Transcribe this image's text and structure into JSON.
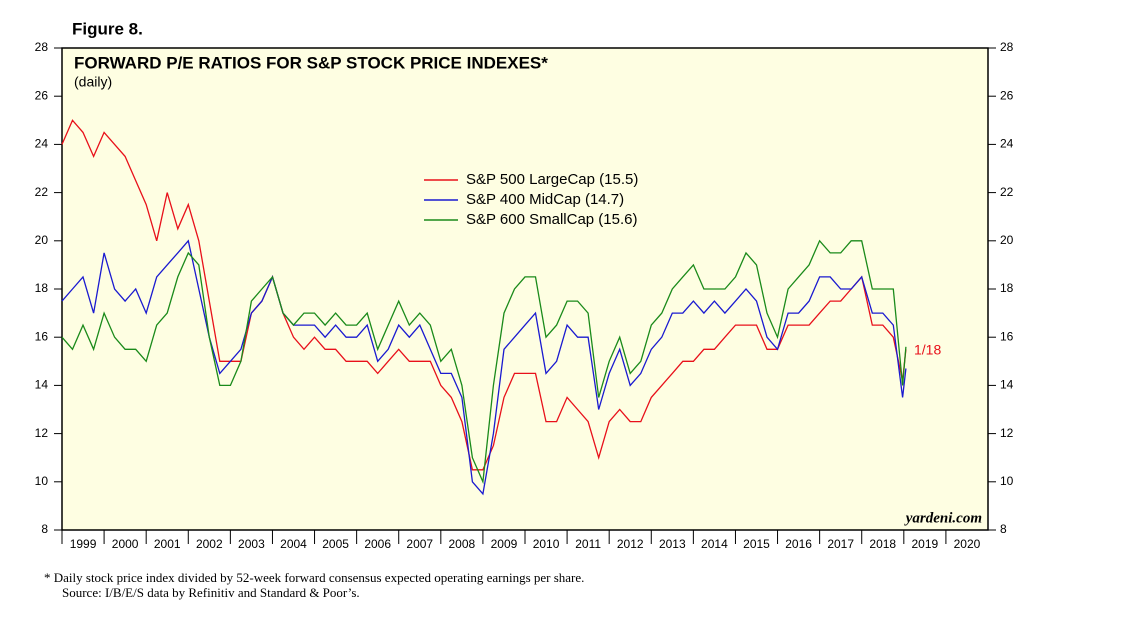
{
  "chart_data": {
    "type": "line",
    "figure_label": "Figure 8.",
    "title": "FORWARD P/E RATIOS FOR S&P STOCK PRICE INDEXES*",
    "subtitle": "(daily)",
    "annotation": "1/18",
    "watermark": "yardeni.com",
    "footnote": "*   Daily stock price index divided by 52-week forward consensus expected operating earnings per share.",
    "source": "Source: I/B/E/S data by Refinitiv and Standard & Poor’s.",
    "x": [
      1999,
      1999.25,
      1999.5,
      1999.75,
      2000,
      2000.25,
      2000.5,
      2000.75,
      2001,
      2001.25,
      2001.5,
      2001.75,
      2002,
      2002.25,
      2002.5,
      2002.75,
      2003,
      2003.25,
      2003.5,
      2003.75,
      2004,
      2004.25,
      2004.5,
      2004.75,
      2005,
      2005.25,
      2005.5,
      2005.75,
      2006,
      2006.25,
      2006.5,
      2006.75,
      2007,
      2007.25,
      2007.5,
      2007.75,
      2008,
      2008.25,
      2008.5,
      2008.75,
      2009,
      2009.25,
      2009.5,
      2009.75,
      2010,
      2010.25,
      2010.5,
      2010.75,
      2011,
      2011.25,
      2011.5,
      2011.75,
      2012,
      2012.25,
      2012.5,
      2012.75,
      2013,
      2013.25,
      2013.5,
      2013.75,
      2014,
      2014.25,
      2014.5,
      2014.75,
      2015,
      2015.25,
      2015.5,
      2015.75,
      2016,
      2016.25,
      2016.5,
      2016.75,
      2017,
      2017.25,
      2017.5,
      2017.75,
      2018,
      2018.25,
      2018.5,
      2018.75,
      2018.97,
      2019.05
    ],
    "series": [
      {
        "name": "S&P 500 LargeCap (15.5)",
        "color": "#e8101a",
        "values": [
          24,
          25,
          24.5,
          23.5,
          24.5,
          24,
          23.5,
          22.5,
          21.5,
          20,
          22,
          20.5,
          21.5,
          20,
          17.5,
          15,
          15,
          15,
          17,
          17.5,
          18.5,
          17,
          16,
          15.5,
          16,
          15.5,
          15.5,
          15,
          15,
          15,
          14.5,
          15,
          15.5,
          15,
          15,
          15,
          14,
          13.5,
          12.5,
          10.5,
          10.5,
          11.5,
          13.5,
          14.5,
          14.5,
          14.5,
          12.5,
          12.5,
          13.5,
          13,
          12.5,
          11,
          12.5,
          13,
          12.5,
          12.5,
          13.5,
          14,
          14.5,
          15,
          15,
          15.5,
          15.5,
          16,
          16.5,
          16.5,
          16.5,
          15.5,
          15.5,
          16.5,
          16.5,
          16.5,
          17,
          17.5,
          17.5,
          18,
          18.5,
          16.5,
          16.5,
          16,
          14.2,
          15.5
        ]
      },
      {
        "name": "S&P 400 MidCap (14.7)",
        "color": "#1a1ad0",
        "values": [
          17.5,
          18,
          18.5,
          17,
          19.5,
          18,
          17.5,
          18,
          17,
          18.5,
          19,
          19.5,
          20,
          18,
          16,
          14.5,
          15,
          15.5,
          17,
          17.5,
          18.5,
          17,
          16.5,
          16.5,
          16.5,
          16,
          16.5,
          16,
          16,
          16.5,
          15,
          15.5,
          16.5,
          16,
          16.5,
          15.5,
          14.5,
          14.5,
          13.5,
          10,
          9.5,
          12,
          15.5,
          16,
          16.5,
          17,
          14.5,
          15,
          16.5,
          16,
          16,
          13,
          14.5,
          15.5,
          14,
          14.5,
          15.5,
          16,
          17,
          17,
          17.5,
          17,
          17.5,
          17,
          17.5,
          18,
          17.5,
          16,
          15.5,
          17,
          17,
          17.5,
          18.5,
          18.5,
          18,
          18,
          18.5,
          17,
          17,
          16.5,
          13.5,
          14.7
        ]
      },
      {
        "name": "S&P 600 SmallCap (15.6)",
        "color": "#1a8a1a",
        "values": [
          16,
          15.5,
          16.5,
          15.5,
          17,
          16,
          15.5,
          15.5,
          15,
          16.5,
          17,
          18.5,
          19.5,
          19,
          16,
          14,
          14,
          15,
          17.5,
          18,
          18.5,
          17,
          16.5,
          17,
          17,
          16.5,
          17,
          16.5,
          16.5,
          17,
          15.5,
          16.5,
          17.5,
          16.5,
          17,
          16.5,
          15,
          15.5,
          14,
          11,
          10,
          14,
          17,
          18,
          18.5,
          18.5,
          16,
          16.5,
          17.5,
          17.5,
          17,
          13.5,
          15,
          16,
          14.5,
          15,
          16.5,
          17,
          18,
          18.5,
          19,
          18,
          18,
          18,
          18.5,
          19.5,
          19,
          17,
          16,
          18,
          18.5,
          19,
          20,
          19.5,
          19.5,
          20,
          20,
          18,
          18,
          18,
          14,
          15.6
        ]
      }
    ],
    "xlim": [
      1999,
      2021
    ],
    "xticks": [
      1999,
      2000,
      2001,
      2002,
      2003,
      2004,
      2005,
      2006,
      2007,
      2008,
      2009,
      2010,
      2011,
      2012,
      2013,
      2014,
      2015,
      2016,
      2017,
      2018,
      2019,
      2020
    ],
    "ylim": [
      8,
      28
    ],
    "yticks": [
      8,
      10,
      12,
      14,
      16,
      18,
      20,
      22,
      24,
      26,
      28
    ],
    "background": "#fefee2"
  }
}
